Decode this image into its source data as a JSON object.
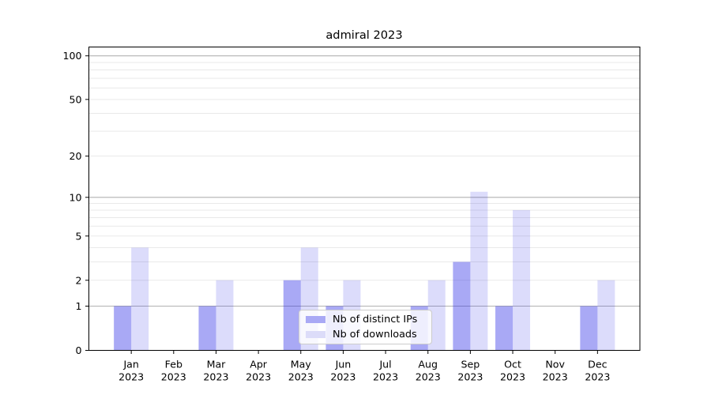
{
  "title": "admiral 2023",
  "legend": {
    "position": "lower center",
    "items": [
      {
        "label": "Nb of distinct IPs",
        "color": "#a9a9f5"
      },
      {
        "label": "Nb of downloads",
        "color": "#dcdcf9"
      }
    ]
  },
  "chart_data": {
    "type": "bar",
    "title": "admiral 2023",
    "xlabel": "",
    "ylabel": "",
    "y_scale": "log10(1+x)",
    "ylim": [
      0,
      115
    ],
    "yticks": [
      0,
      1,
      2,
      5,
      10,
      20,
      50,
      100
    ],
    "major_gridlines": [
      1,
      10,
      100
    ],
    "minor_gridlines": [
      2,
      3,
      4,
      5,
      6,
      7,
      8,
      9,
      20,
      30,
      40,
      50,
      60,
      70,
      80,
      90
    ],
    "grid": true,
    "legend_position": "lower center",
    "categories": [
      {
        "month": "Jan",
        "year": "2023"
      },
      {
        "month": "Feb",
        "year": "2023"
      },
      {
        "month": "Mar",
        "year": "2023"
      },
      {
        "month": "Apr",
        "year": "2023"
      },
      {
        "month": "May",
        "year": "2023"
      },
      {
        "month": "Jun",
        "year": "2023"
      },
      {
        "month": "Jul",
        "year": "2023"
      },
      {
        "month": "Aug",
        "year": "2023"
      },
      {
        "month": "Sep",
        "year": "2023"
      },
      {
        "month": "Oct",
        "year": "2023"
      },
      {
        "month": "Nov",
        "year": "2023"
      },
      {
        "month": "Dec",
        "year": "2023"
      }
    ],
    "series": [
      {
        "name": "Nb of distinct IPs",
        "fill": "rgba(40,40,230,0.40)",
        "solid_color": "#a9a9f5",
        "values": [
          1,
          0,
          1,
          0,
          2,
          1,
          0,
          1,
          3,
          1,
          0,
          1
        ]
      },
      {
        "name": "Nb of downloads",
        "fill": "rgba(40,40,230,0.16)",
        "solid_color": "#dcdcf9",
        "values": [
          4,
          0,
          2,
          0,
          4,
          2,
          0,
          2,
          11,
          8,
          0,
          2
        ]
      }
    ]
  },
  "style": {
    "major_grid_color": "#b2b2b2",
    "minor_grid_color": "#e9e9e9",
    "spine_color": "#000000",
    "tick_label_color": "#000000"
  }
}
